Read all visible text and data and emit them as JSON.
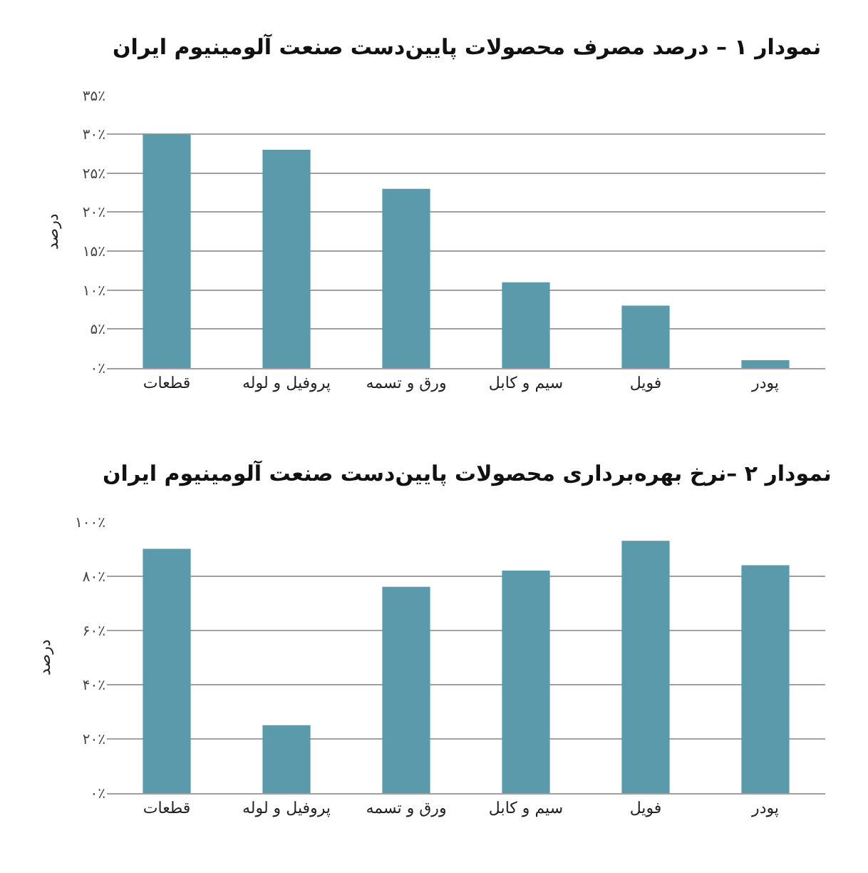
{
  "chart_data": [
    {
      "type": "bar",
      "title": "نمودار ۱ – درصد مصرف محصولات پایین‌دست صنعت آلومینیوم ایران",
      "ylabel": "درصد",
      "categories": [
        "قطعات",
        "پروفیل و لوله",
        "ورق و تسمه",
        "سیم و کابل",
        "فویل",
        "پودر"
      ],
      "values": [
        30,
        28,
        23,
        11,
        8,
        1
      ],
      "color": "#5b9aaa",
      "ylim": [
        0,
        35
      ],
      "yticks": [
        {
          "value": 0,
          "label": "۰٪"
        },
        {
          "value": 5,
          "label": "۵٪"
        },
        {
          "value": 10,
          "label": "۱۰٪"
        },
        {
          "value": 15,
          "label": "۱۵٪"
        },
        {
          "value": 20,
          "label": "۲۰٪"
        },
        {
          "value": 25,
          "label": "۲۵٪"
        },
        {
          "value": 30,
          "label": "۳۰٪"
        },
        {
          "value": 35,
          "label": "۳۵٪"
        }
      ],
      "grid": "y"
    },
    {
      "type": "bar",
      "title": "نمودار ۲ –نرخ بهره‌برداری محصولات پایین‌دست صنعت آلومینیوم ایران",
      "ylabel": "درصد",
      "categories": [
        "قطعات",
        "پروفیل و لوله",
        "ورق و تسمه",
        "سیم و کابل",
        "فویل",
        "پودر"
      ],
      "values": [
        90,
        25,
        76,
        82,
        93,
        84
      ],
      "color": "#5b9aaa",
      "ylim": [
        0,
        100
      ],
      "yticks": [
        {
          "value": 0,
          "label": "۰٪"
        },
        {
          "value": 20,
          "label": "۲۰٪"
        },
        {
          "value": 40,
          "label": "۴۰٪"
        },
        {
          "value": 60,
          "label": "۶۰٪"
        },
        {
          "value": 80,
          "label": "۸۰٪"
        },
        {
          "value": 100,
          "label": "۱۰۰٪"
        }
      ],
      "grid": "y"
    }
  ]
}
